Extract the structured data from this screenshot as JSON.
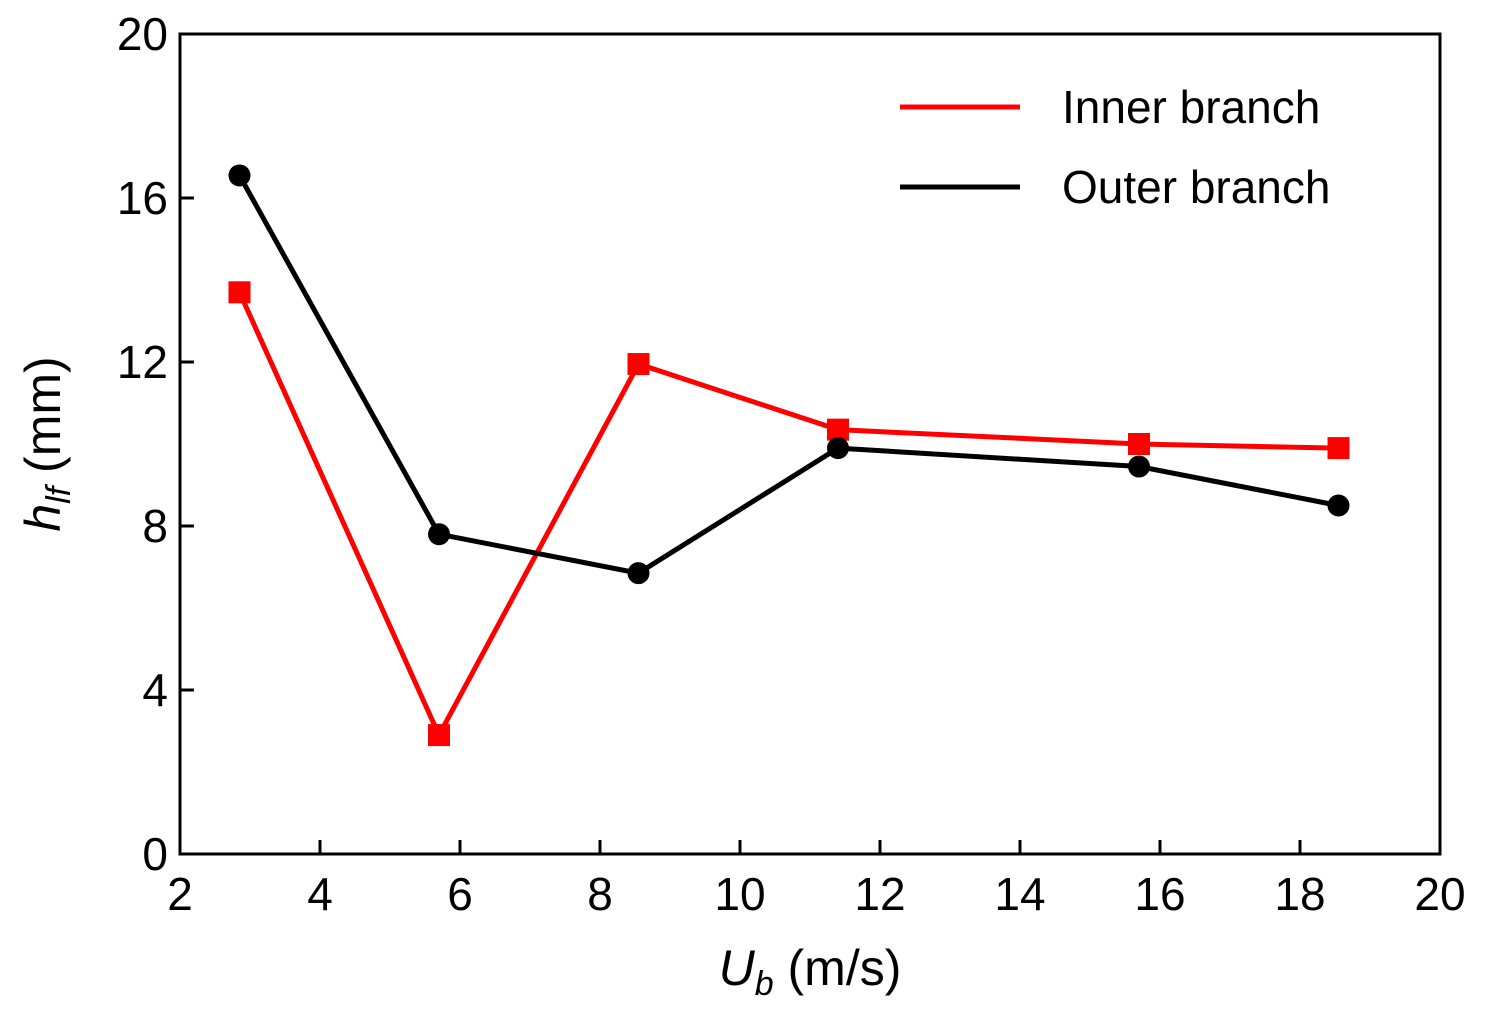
{
  "chart_data": {
    "type": "line",
    "title": "",
    "xlabel": {
      "symbol": "U",
      "subscript": "b",
      "unit": " (m/s)"
    },
    "ylabel": {
      "symbol": "h",
      "subscript": "lf",
      "unit": " (mm)"
    },
    "xlim": [
      2,
      20
    ],
    "ylim": [
      0,
      20
    ],
    "xticks": [
      2,
      4,
      6,
      8,
      10,
      12,
      14,
      16,
      18,
      20
    ],
    "yticks": [
      0,
      4,
      8,
      12,
      16,
      20
    ],
    "legend_position": "top-right",
    "series": [
      {
        "name": "Inner branch",
        "color": "#ff0000",
        "marker": "square",
        "x": [
          2.85,
          5.7,
          8.55,
          11.4,
          15.7,
          18.55
        ],
        "y": [
          13.7,
          2.9,
          11.95,
          10.35,
          10.0,
          9.9
        ]
      },
      {
        "name": "Outer branch",
        "color": "#000000",
        "marker": "circle",
        "x": [
          2.85,
          5.7,
          8.55,
          11.4,
          15.7,
          18.55
        ],
        "y": [
          16.55,
          7.8,
          6.85,
          9.9,
          9.45,
          8.5
        ]
      }
    ]
  }
}
